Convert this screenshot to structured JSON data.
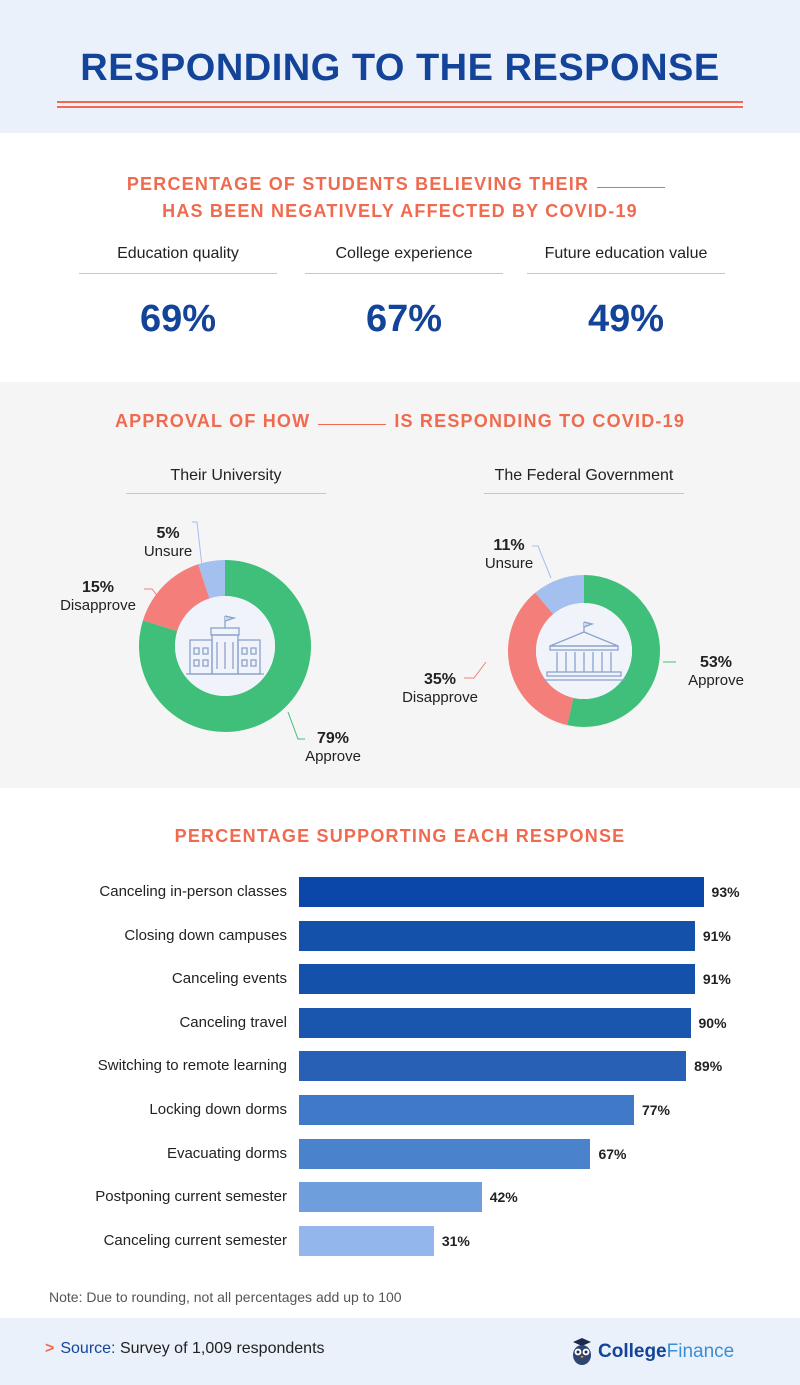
{
  "header": {
    "title": "RESPONDING TO THE RESPONSE"
  },
  "section1": {
    "title_line1": "PERCENTAGE OF STUDENTS BELIEVING THEIR",
    "title_line2": "HAS BEEN NEGATIVELY AFFECTED BY COVID-19",
    "stats": [
      {
        "label": "Education quality",
        "value": "69%"
      },
      {
        "label": "College experience",
        "value": "67%"
      },
      {
        "label": "Future education value",
        "value": "49%"
      }
    ]
  },
  "section2": {
    "title_part1": "APPROVAL OF HOW",
    "title_part2": "IS RESPONDING TO COVID-19"
  },
  "section3": {
    "title": "PERCENTAGE SUPPORTING EACH RESPONSE",
    "note": "Note: Due to rounding, not all percentages add up to 100"
  },
  "footer": {
    "source_key": "Source:",
    "source_text": "Survey of 1,009 respondents",
    "brand_part1": "College",
    "brand_part2": "Finance"
  },
  "colors": {
    "title_blue": "#13449a",
    "accent_orange": "#ef6a4e",
    "approve_green": "#3fbf79",
    "disapprove_red": "#f47e79",
    "unsure_blue": "#a3c0ee"
  },
  "chart_data": [
    {
      "type": "pie",
      "title": "Their University",
      "categories": [
        "Approve",
        "Disapprove",
        "Unsure"
      ],
      "values": [
        79,
        15,
        5
      ],
      "value_labels": [
        "79%",
        "15%",
        "5%"
      ],
      "colors": [
        "#3fbf79",
        "#f47e79",
        "#a3c0ee"
      ]
    },
    {
      "type": "pie",
      "title": "The Federal Government",
      "categories": [
        "Approve",
        "Disapprove",
        "Unsure"
      ],
      "values": [
        53,
        35,
        11
      ],
      "value_labels": [
        "53%",
        "35%",
        "11%"
      ],
      "colors": [
        "#3fbf79",
        "#f47e79",
        "#a3c0ee"
      ]
    },
    {
      "type": "bar",
      "orientation": "horizontal",
      "categories": [
        "Canceling in-person classes",
        "Closing down campuses",
        "Canceling events",
        "Canceling travel",
        "Switching to remote learning",
        "Locking down dorms",
        "Evacuating dorms",
        "Postponing current semester",
        "Canceling current semester"
      ],
      "values": [
        93,
        91,
        91,
        90,
        89,
        77,
        67,
        42,
        31
      ],
      "value_labels": [
        "93%",
        "91%",
        "91%",
        "90%",
        "89%",
        "77%",
        "67%",
        "42%",
        "31%"
      ],
      "colors": [
        "#0a47a6",
        "#1351ab",
        "#1351ab",
        "#1a55ae",
        "#2760b5",
        "#3f79c8",
        "#4a82cc",
        "#6f9edc",
        "#93b7ec"
      ],
      "xlim": [
        0,
        100
      ]
    }
  ]
}
